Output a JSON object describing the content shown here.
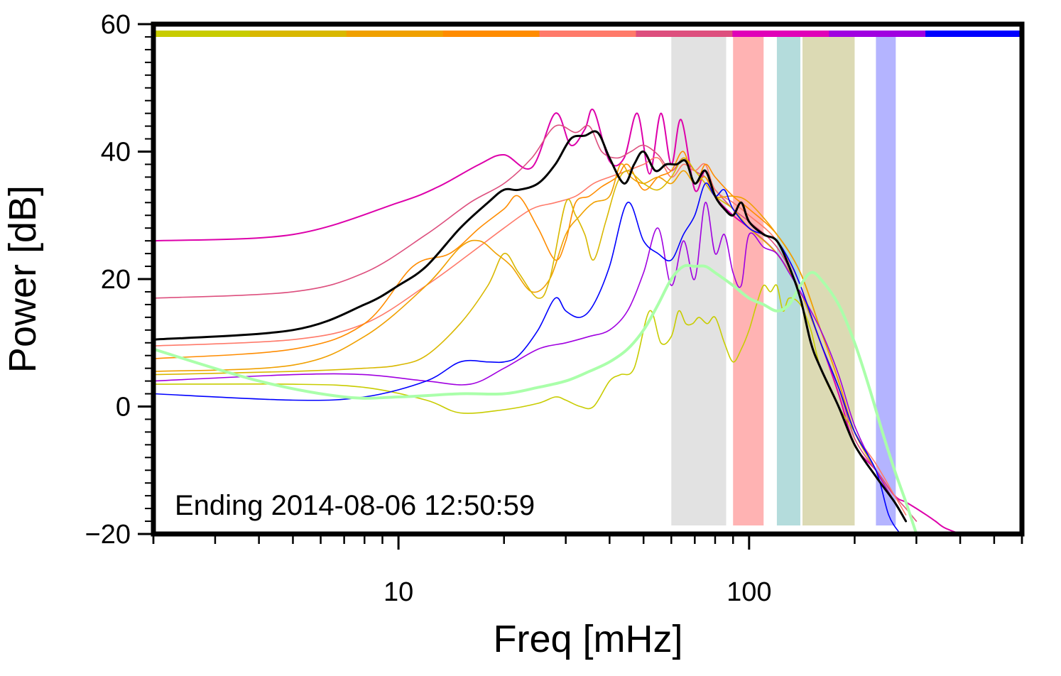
{
  "chart_data": {
    "type": "line",
    "xlabel": "Freq [mHz]",
    "ylabel": "Power [dB]",
    "x_scale": "log",
    "xlim": [
      2,
      600
    ],
    "ylim": [
      -20,
      60
    ],
    "x_ticks": [
      10,
      100
    ],
    "y_ticks": [
      -20,
      0,
      20,
      40,
      60
    ],
    "annotation": "Ending 2014-08-06 12:50:59",
    "grid": false,
    "top_color_bar": [
      "#c8cc00",
      "#d9b800",
      "#f0a000",
      "#ff8c00",
      "#ff7a6a",
      "#dd4f7e",
      "#e000b8",
      "#a000e0",
      "#0000ff"
    ],
    "bands": [
      {
        "x0": 60,
        "x1": 86,
        "color": "#e2e2e2"
      },
      {
        "x0": 90,
        "x1": 110,
        "color": "#ffb3b3"
      },
      {
        "x0": 120,
        "x1": 140,
        "color": "#b4dcdc"
      },
      {
        "x0": 142,
        "x1": 200,
        "color": "#dcdab4"
      },
      {
        "x0": 230,
        "x1": 262,
        "color": "#b4b4ff"
      }
    ],
    "series": [
      {
        "color": "#dd00aa",
        "width": 2,
        "x": [
          2,
          5,
          10,
          13,
          17,
          20,
          24,
          28,
          31,
          34,
          36,
          40,
          44,
          48,
          52,
          56,
          60,
          64,
          70,
          75,
          80,
          90,
          100,
          120,
          140,
          160,
          180,
          200,
          230,
          260,
          280,
          300,
          320,
          340,
          360,
          400,
          450,
          500
        ],
        "y": [
          26,
          27,
          32,
          34.5,
          38,
          39.5,
          37.5,
          46,
          41,
          43.5,
          46.5,
          38.5,
          39,
          46,
          36.5,
          46,
          38,
          45,
          34,
          37,
          33,
          30,
          28,
          24,
          18,
          10,
          2,
          -6,
          -10,
          -14,
          -15,
          -16,
          -17,
          -18,
          -19,
          -20,
          -21,
          -20
        ]
      },
      {
        "color": "#dd4f7e",
        "width": 1.6,
        "x": [
          2,
          5,
          8,
          12,
          16,
          20,
          24,
          28,
          32,
          35,
          38,
          42,
          46,
          50,
          55,
          60,
          65,
          70,
          75,
          80,
          90,
          100,
          120,
          140,
          160,
          180,
          200,
          230,
          260,
          280,
          300
        ],
        "y": [
          17,
          18,
          21,
          27,
          32,
          35,
          39,
          44,
          43,
          44,
          40,
          39,
          40,
          41,
          39.5,
          37,
          39,
          37,
          36,
          34,
          31,
          29,
          25,
          18,
          10,
          3,
          -5,
          -10,
          -14,
          -16,
          -18
        ]
      },
      {
        "color": "#ff7a6a",
        "width": 1.6,
        "x": [
          2,
          5,
          8,
          12,
          16,
          20,
          24,
          28,
          32,
          36,
          40,
          45,
          50,
          55,
          60,
          65,
          70,
          75,
          80,
          90,
          100,
          120,
          140,
          160,
          180,
          200,
          230,
          260,
          280
        ],
        "y": [
          9.5,
          10.5,
          13,
          19,
          24,
          28,
          31,
          32,
          33,
          35,
          36,
          37,
          38,
          39,
          36,
          38,
          37,
          38,
          34,
          32,
          30,
          26,
          19,
          10,
          3,
          -4,
          -9,
          -14,
          -17
        ]
      },
      {
        "color": "#ff8c00",
        "width": 1.6,
        "x": [
          2,
          5,
          8,
          11,
          14,
          17,
          20,
          22,
          25,
          28,
          30,
          32,
          35,
          38,
          42,
          45,
          50,
          55,
          60,
          65,
          70,
          75,
          80,
          90,
          100,
          120,
          140,
          160,
          180,
          200,
          230,
          260,
          280
        ],
        "y": [
          7.5,
          9,
          13,
          22,
          24,
          28,
          31,
          33,
          28,
          23,
          26,
          32,
          33,
          34.5,
          36,
          38,
          34,
          36,
          37,
          40,
          35,
          38,
          36,
          33,
          31,
          27,
          21,
          12,
          4,
          -4,
          -10,
          -15,
          -18
        ]
      },
      {
        "color": "#f0a000",
        "width": 1.6,
        "x": [
          2,
          5,
          8,
          12,
          15,
          17,
          19,
          21,
          24,
          27,
          30,
          33,
          36,
          40,
          43,
          46,
          50,
          55,
          60,
          65,
          70,
          75,
          80,
          90,
          100,
          120,
          140,
          160,
          180,
          200,
          230,
          260,
          280
        ],
        "y": [
          5.5,
          6.5,
          11,
          19,
          25,
          26,
          24,
          22,
          18,
          20,
          27,
          30,
          32,
          33,
          38,
          36,
          35,
          36,
          35,
          37,
          35,
          36,
          33,
          33,
          32,
          27,
          21,
          12,
          4,
          -4,
          -10,
          -15,
          -18
        ]
      },
      {
        "color": "#d9b800",
        "width": 1.6,
        "x": [
          2,
          5,
          8,
          10,
          12,
          15,
          18,
          20,
          22,
          25,
          27,
          30,
          32,
          34,
          36,
          39,
          42,
          45,
          50,
          55,
          60,
          65,
          70,
          75,
          80,
          90,
          100,
          120,
          140,
          160,
          180,
          200,
          230,
          260
        ],
        "y": [
          5,
          5.5,
          6,
          6.5,
          8,
          13,
          19,
          24,
          21,
          17,
          20,
          32,
          30,
          27,
          23,
          29,
          35,
          37,
          35,
          34,
          36,
          39,
          37,
          35,
          33,
          31,
          28,
          24,
          18,
          10,
          3,
          -4,
          -10,
          -15
        ]
      },
      {
        "color": "#c8cc00",
        "width": 1.6,
        "x": [
          2,
          5,
          8,
          12,
          15,
          20,
          25,
          28,
          30,
          33,
          36,
          40,
          43,
          47,
          52,
          56,
          60,
          63,
          66,
          69,
          72,
          76,
          80,
          85,
          90,
          95,
          100,
          105,
          110,
          115,
          120,
          125,
          130,
          140,
          150,
          160,
          180,
          200,
          230,
          260
        ],
        "y": [
          3.5,
          3.5,
          3,
          1,
          -1,
          -0.5,
          0.5,
          1.5,
          1,
          0,
          0,
          4,
          5,
          6,
          15,
          10,
          11,
          15,
          13,
          13,
          14,
          13,
          14,
          10,
          7,
          9,
          12,
          16,
          19,
          18,
          19,
          15,
          17,
          16,
          12,
          6,
          0,
          -4,
          -10,
          -15
        ]
      },
      {
        "color": "#a000e0",
        "width": 1.6,
        "x": [
          2,
          5,
          8,
          12,
          16,
          20,
          25,
          30,
          35,
          40,
          45,
          50,
          55,
          60,
          65,
          70,
          75,
          80,
          85,
          90,
          95,
          100,
          110,
          120,
          130,
          140,
          160,
          180,
          200,
          230,
          260,
          280
        ],
        "y": [
          4,
          5,
          5,
          4,
          3.5,
          6,
          9,
          10,
          11,
          12,
          15,
          21,
          28,
          19,
          26,
          20,
          32,
          24,
          27,
          21,
          19,
          27,
          25,
          24,
          21,
          18,
          12,
          5,
          -3,
          -10,
          -15,
          -18
        ]
      },
      {
        "color": "#0000ff",
        "width": 1.6,
        "x": [
          2,
          5,
          8,
          12,
          15,
          18,
          20,
          22,
          25,
          28,
          30,
          33,
          36,
          40,
          45,
          50,
          55,
          60,
          65,
          70,
          75,
          80,
          85,
          90,
          100,
          110,
          120,
          130,
          140,
          160,
          180,
          200,
          230,
          250,
          270
        ],
        "y": [
          2,
          1,
          1.5,
          4,
          7,
          7,
          7,
          8,
          12,
          17,
          15,
          14,
          16,
          22,
          32,
          26,
          24,
          23,
          27,
          30,
          35,
          33,
          34,
          31,
          28,
          27,
          26,
          23,
          19,
          10,
          3,
          -4,
          -10,
          -17,
          -20
        ]
      },
      {
        "color": "#aaffaa",
        "width": 4,
        "x": [
          2,
          4,
          7,
          10,
          15,
          20,
          25,
          30,
          35,
          40,
          45,
          50,
          55,
          60,
          65,
          70,
          75,
          80,
          90,
          100,
          110,
          120,
          130,
          140,
          150,
          160,
          180,
          200,
          220,
          240,
          260,
          280,
          300
        ],
        "y": [
          9,
          4,
          1.5,
          1.5,
          2,
          2,
          3,
          4,
          5.5,
          7,
          9,
          12,
          16,
          20,
          22,
          22,
          22,
          21,
          19,
          17,
          16,
          15,
          16,
          19,
          21,
          20,
          16,
          10,
          3,
          -4,
          -10,
          -15,
          -20
        ]
      },
      {
        "color": "#000000",
        "width": 3,
        "x": [
          2,
          5,
          8,
          10,
          12,
          15,
          18,
          20,
          22,
          25,
          28,
          31,
          34,
          37,
          40,
          44,
          47,
          50,
          54,
          58,
          62,
          66,
          70,
          75,
          80,
          85,
          90,
          95,
          100,
          110,
          120,
          130,
          140,
          150,
          160,
          180,
          200,
          230,
          260,
          280
        ],
        "y": [
          10.5,
          12,
          16,
          19,
          22,
          28,
          32,
          34,
          34,
          35,
          38,
          42,
          42.5,
          43,
          39,
          35,
          38,
          40,
          37,
          38,
          38,
          38.5,
          35,
          37,
          33,
          31,
          30,
          32,
          29,
          27,
          26,
          22,
          17,
          10,
          6,
          0,
          -6,
          -11,
          -15,
          -18
        ]
      }
    ]
  }
}
